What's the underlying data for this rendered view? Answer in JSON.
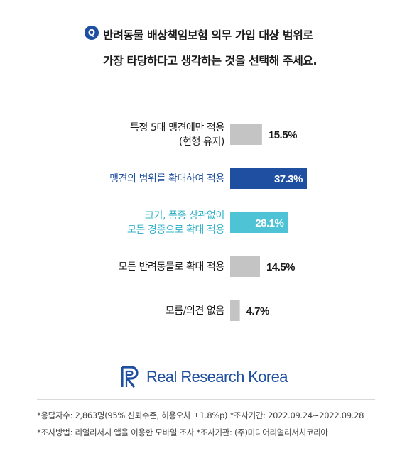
{
  "question": {
    "badge": "Q",
    "line1": "반려동물 배상책임보험 의무 가입 대상 범위로",
    "line2": "가장 타당하다고 생각하는 것을 선택해 주세요."
  },
  "colors": {
    "gray": "#c4c4c4",
    "dark_blue": "#1f4fa0",
    "light_blue": "#4ec3d6",
    "brand": "#1f4fa0"
  },
  "chart_data": {
    "type": "bar",
    "orientation": "horizontal",
    "categories": [
      [
        "특정 5대 맹견에만 적용",
        "(현행 유지)"
      ],
      [
        "맹견의 범위를 확대하여 적용"
      ],
      [
        "크기, 품종 상관없이",
        "모든 경종으로 확대 적용"
      ],
      [
        "모든 반려동물로 확대 적용"
      ],
      [
        "모름/의견 없음"
      ]
    ],
    "values": [
      15.5,
      37.3,
      28.1,
      14.5,
      4.7
    ],
    "value_labels": [
      "15.5%",
      "37.3%",
      "28.1%",
      "14.5%",
      "4.7%"
    ],
    "bar_colors": [
      "#c4c4c4",
      "#1f4fa0",
      "#4ec3d6",
      "#c4c4c4",
      "#c4c4c4"
    ],
    "label_colors": [
      "#1a1a1a",
      "#1f4fa0",
      "#36b3c9",
      "#1a1a1a",
      "#1a1a1a"
    ],
    "value_inside": [
      false,
      true,
      true,
      false,
      false
    ]
  },
  "logo": {
    "text": "Real Research Korea"
  },
  "footnotes": {
    "line1": "*응답자수: 2,863명(95% 신뢰수준, 허용오차 ±1.8%p)  *조사기간: 2022.09.24~2022.09.28",
    "line2": "*조사방법: 리얼리서치 앱을 이용한 모바일 조사  *조사기관: (주)미디어리얼리서치코리아"
  }
}
